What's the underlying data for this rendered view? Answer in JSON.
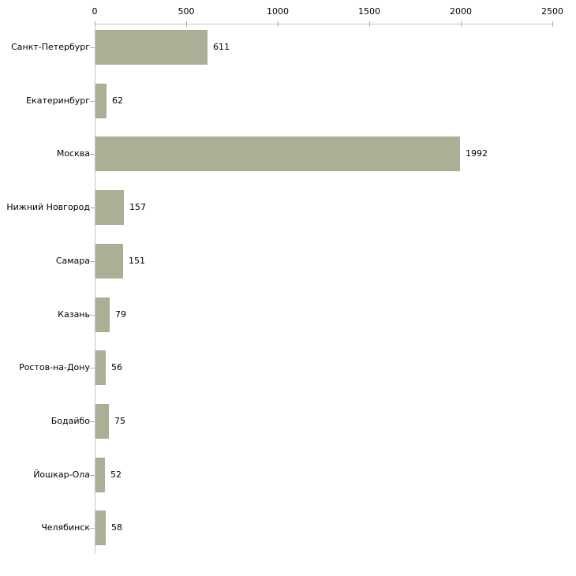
{
  "chart_data": {
    "type": "bar",
    "orientation": "horizontal",
    "title": "",
    "xlabel": "",
    "ylabel": "",
    "categories": [
      "Санкт-Петербург",
      "Екатеринбург",
      "Москва",
      "Нижний Новгород",
      "Самара",
      "Казань",
      "Ростов-на-Дону",
      "Бодайбо",
      "Йошкар-Ола",
      "Челябинск"
    ],
    "values": [
      611,
      62,
      1992,
      157,
      151,
      79,
      56,
      75,
      52,
      58
    ],
    "value_labels": [
      "611",
      "62",
      "1992",
      "157",
      "151",
      "79",
      "56",
      "75",
      "52",
      "58"
    ],
    "x_ticks": [
      "0",
      "500",
      "1000",
      "1500",
      "2000",
      "2500"
    ],
    "x_tick_values": [
      0,
      500,
      1000,
      1500,
      2000,
      2500
    ],
    "xlim": [
      0,
      2500
    ],
    "grid": false,
    "legend": null,
    "axis_position": "top",
    "colors": {
      "bar": "#aab096",
      "axis_line": "#c6c6c6",
      "tick_mark": "#b5b584",
      "text": "#000000",
      "background": "#ffffff"
    }
  }
}
